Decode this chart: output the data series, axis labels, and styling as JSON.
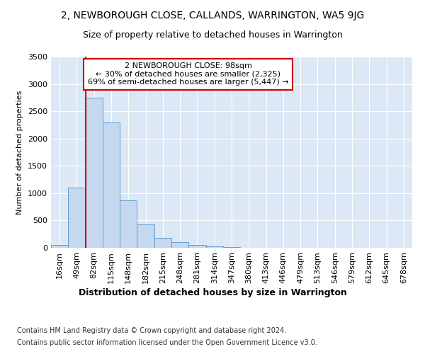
{
  "title1": "2, NEWBOROUGH CLOSE, CALLANDS, WARRINGTON, WA5 9JG",
  "title2": "Size of property relative to detached houses in Warrington",
  "xlabel": "Distribution of detached houses by size in Warrington",
  "ylabel": "Number of detached properties",
  "footer1": "Contains HM Land Registry data © Crown copyright and database right 2024.",
  "footer2": "Contains public sector information licensed under the Open Government Licence v3.0.",
  "annotation_line1": "2 NEWBOROUGH CLOSE: 98sqm",
  "annotation_line2": "← 30% of detached houses are smaller (2,325)",
  "annotation_line3": "69% of semi-detached houses are larger (5,447) →",
  "bin_labels": [
    "16sqm",
    "49sqm",
    "82sqm",
    "115sqm",
    "148sqm",
    "182sqm",
    "215sqm",
    "248sqm",
    "281sqm",
    "314sqm",
    "347sqm",
    "380sqm",
    "413sqm",
    "446sqm",
    "479sqm",
    "513sqm",
    "546sqm",
    "579sqm",
    "612sqm",
    "645sqm",
    "678sqm"
  ],
  "bar_values": [
    50,
    1100,
    2750,
    2300,
    875,
    425,
    185,
    100,
    50,
    30,
    10,
    5,
    2,
    1,
    0,
    0,
    0,
    0,
    0,
    0,
    0
  ],
  "bar_color": "#c5d8f0",
  "bar_edge_color": "#5a9fd4",
  "vline_color": "#cc0000",
  "vline_x_index": 1.5,
  "annotation_box_color": "#ffffff",
  "annotation_box_edge": "#cc0000",
  "plot_bg_color": "#dce8f5",
  "ylim": [
    0,
    3500
  ],
  "yticks": [
    0,
    500,
    1000,
    1500,
    2000,
    2500,
    3000,
    3500
  ],
  "grid_color": "#ffffff",
  "title1_fontsize": 10,
  "title2_fontsize": 9,
  "xlabel_fontsize": 9,
  "ylabel_fontsize": 8,
  "tick_fontsize": 8,
  "annotation_fontsize": 8,
  "footer_fontsize": 7
}
